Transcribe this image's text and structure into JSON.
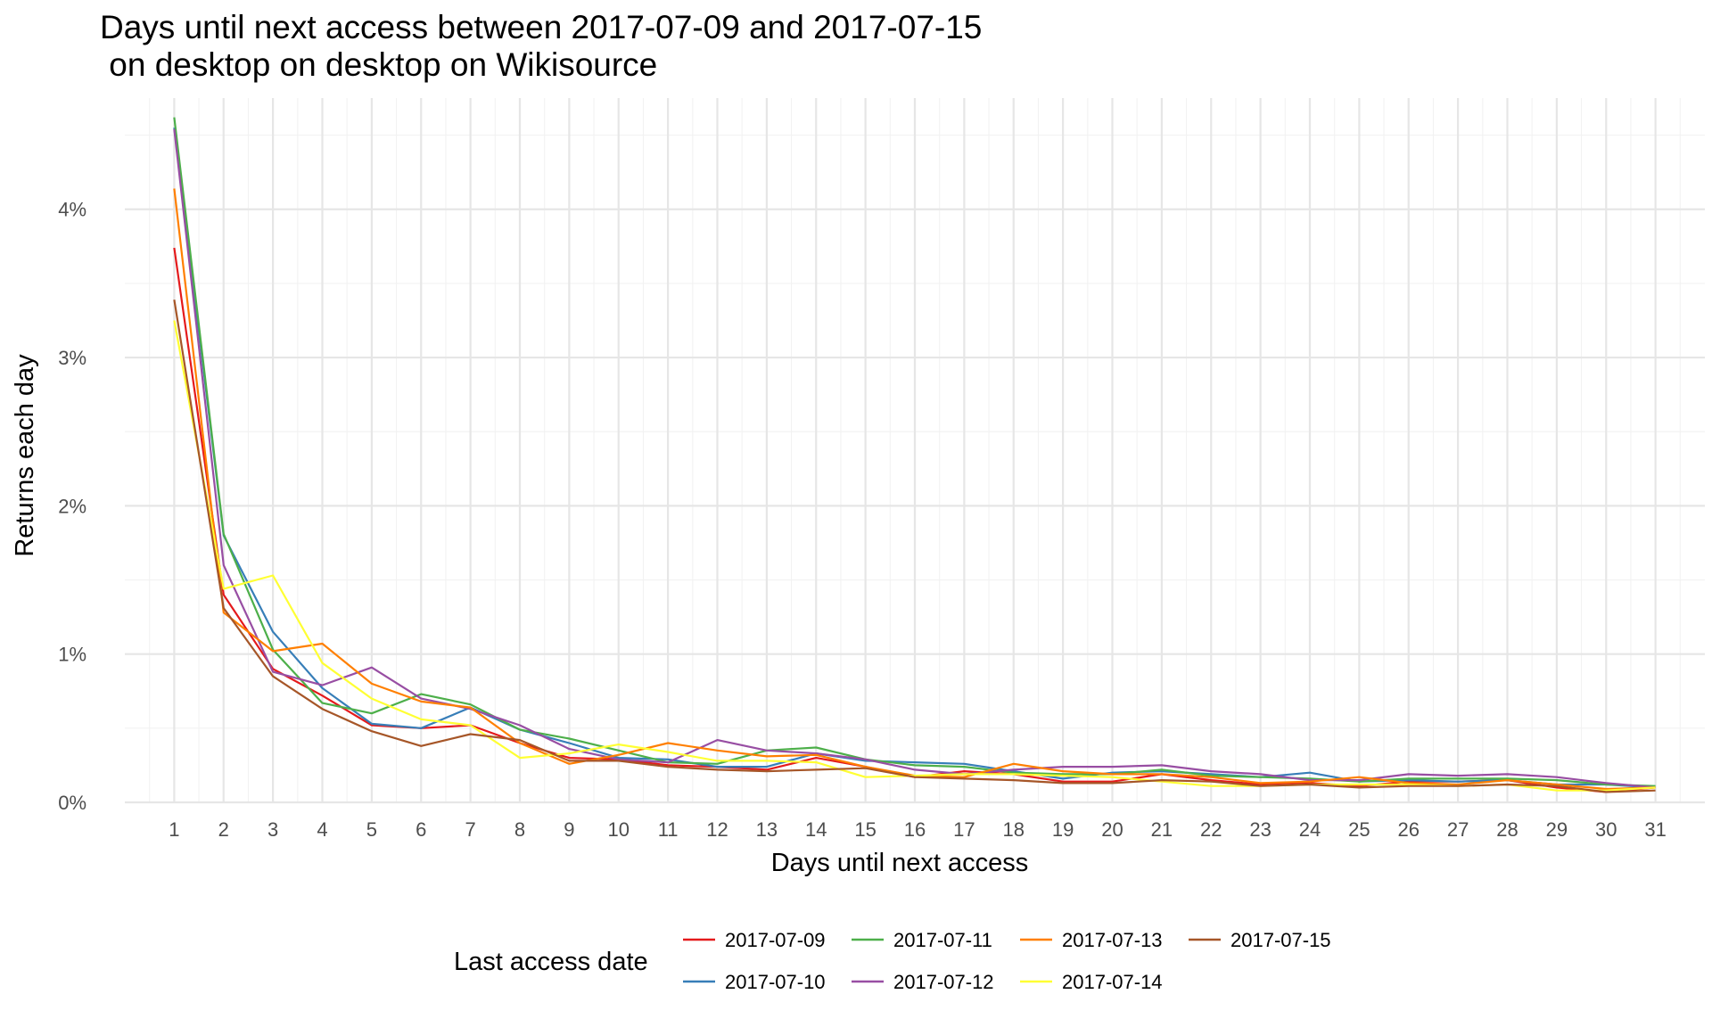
{
  "chart_data": {
    "type": "line",
    "title_lines": [
      "Days until next access between 2017-07-09 and 2017-07-15",
      " on desktop on desktop on Wikisource"
    ],
    "xlabel": "Days until next access",
    "ylabel": "Returns each day",
    "x": [
      1,
      2,
      3,
      4,
      5,
      6,
      7,
      8,
      9,
      10,
      11,
      12,
      13,
      14,
      15,
      16,
      17,
      18,
      19,
      20,
      21,
      22,
      23,
      24,
      25,
      26,
      27,
      28,
      29,
      30,
      31
    ],
    "x_tick_labels": [
      "1",
      "2",
      "3",
      "4",
      "5",
      "6",
      "7",
      "8",
      "9",
      "10",
      "11",
      "12",
      "13",
      "14",
      "15",
      "16",
      "17",
      "18",
      "19",
      "20",
      "21",
      "22",
      "23",
      "24",
      "25",
      "26",
      "27",
      "28",
      "29",
      "30",
      "31"
    ],
    "xlim": [
      0,
      32
    ],
    "ylim": [
      0,
      4.75
    ],
    "y_ticks": [
      0,
      1,
      2,
      3,
      4
    ],
    "y_tick_labels": [
      "0%",
      "1%",
      "2%",
      "3%",
      "4%"
    ],
    "grid": true,
    "legend_title": "Last access date",
    "legend_position": "bottom",
    "series": [
      {
        "name": "2017-07-09",
        "color": "#e41a1c",
        "values": [
          3.74,
          1.4,
          0.9,
          0.72,
          0.52,
          0.5,
          0.52,
          0.4,
          0.3,
          0.29,
          0.25,
          0.24,
          0.22,
          0.3,
          0.24,
          0.17,
          0.21,
          0.19,
          0.14,
          0.14,
          0.19,
          0.15,
          0.12,
          0.13,
          0.11,
          0.14,
          0.14,
          0.15,
          0.1,
          0.07,
          0.1
        ]
      },
      {
        "name": "2017-07-10",
        "color": "#377eb8",
        "values": [
          4.55,
          1.8,
          1.15,
          0.77,
          0.53,
          0.5,
          0.64,
          0.49,
          0.4,
          0.3,
          0.29,
          0.24,
          0.24,
          0.33,
          0.28,
          0.27,
          0.26,
          0.21,
          0.16,
          0.2,
          0.21,
          0.19,
          0.17,
          0.2,
          0.14,
          0.15,
          0.14,
          0.15,
          0.12,
          0.12,
          0.1
        ]
      },
      {
        "name": "2017-07-11",
        "color": "#4daf4a",
        "values": [
          4.62,
          1.81,
          1.03,
          0.67,
          0.6,
          0.73,
          0.66,
          0.49,
          0.43,
          0.35,
          0.27,
          0.26,
          0.35,
          0.37,
          0.29,
          0.25,
          0.24,
          0.2,
          0.19,
          0.19,
          0.22,
          0.18,
          0.17,
          0.16,
          0.14,
          0.16,
          0.16,
          0.16,
          0.15,
          0.12,
          0.11
        ]
      },
      {
        "name": "2017-07-12",
        "color": "#984ea3",
        "values": [
          4.54,
          1.6,
          0.88,
          0.79,
          0.91,
          0.7,
          0.63,
          0.52,
          0.36,
          0.29,
          0.27,
          0.42,
          0.35,
          0.33,
          0.29,
          0.22,
          0.19,
          0.22,
          0.24,
          0.24,
          0.25,
          0.21,
          0.19,
          0.15,
          0.15,
          0.19,
          0.18,
          0.19,
          0.17,
          0.13,
          0.1
        ]
      },
      {
        "name": "2017-07-13",
        "color": "#ff7f00",
        "values": [
          4.14,
          1.28,
          1.02,
          1.07,
          0.8,
          0.68,
          0.64,
          0.4,
          0.26,
          0.32,
          0.4,
          0.35,
          0.31,
          0.32,
          0.24,
          0.18,
          0.17,
          0.26,
          0.21,
          0.19,
          0.19,
          0.17,
          0.13,
          0.14,
          0.17,
          0.13,
          0.12,
          0.15,
          0.12,
          0.09,
          0.1
        ]
      },
      {
        "name": "2017-07-14",
        "color": "#ffff33",
        "values": [
          3.25,
          1.44,
          1.53,
          0.94,
          0.7,
          0.56,
          0.52,
          0.3,
          0.33,
          0.39,
          0.34,
          0.28,
          0.28,
          0.27,
          0.17,
          0.18,
          0.19,
          0.19,
          0.18,
          0.17,
          0.14,
          0.11,
          0.11,
          0.12,
          0.12,
          0.12,
          0.11,
          0.12,
          0.08,
          0.08,
          0.1
        ]
      },
      {
        "name": "2017-07-15",
        "color": "#a65628",
        "values": [
          3.39,
          1.31,
          0.85,
          0.63,
          0.48,
          0.38,
          0.46,
          0.42,
          0.28,
          0.28,
          0.24,
          0.22,
          0.21,
          0.22,
          0.23,
          0.17,
          0.16,
          0.15,
          0.13,
          0.13,
          0.15,
          0.14,
          0.11,
          0.12,
          0.1,
          0.11,
          0.11,
          0.12,
          0.11,
          0.07,
          0.08
        ]
      }
    ]
  }
}
